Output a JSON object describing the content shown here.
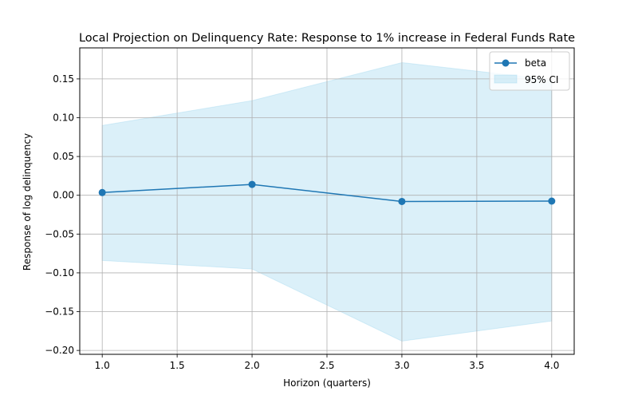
{
  "chart_data": {
    "type": "line",
    "title": "Local Projection on Delinquency Rate: Response to 1% increase in Federal Funds Rate",
    "xlabel": "Horizon (quarters)",
    "ylabel": "Response of log delinquency",
    "xlim": [
      0.85,
      4.15
    ],
    "ylim": [
      -0.205,
      0.19
    ],
    "xticks": [
      1.0,
      1.5,
      2.0,
      2.5,
      3.0,
      3.5,
      4.0
    ],
    "xtick_labels": [
      "1.0",
      "1.5",
      "2.0",
      "2.5",
      "3.0",
      "3.5",
      "4.0"
    ],
    "yticks": [
      -0.2,
      -0.15,
      -0.1,
      -0.05,
      0.0,
      0.05,
      0.1,
      0.15
    ],
    "ytick_labels": [
      "−0.20",
      "−0.15",
      "−0.10",
      "−0.05",
      "0.00",
      "0.05",
      "0.10",
      "0.15"
    ],
    "grid": true,
    "legend_position": "top-right",
    "x": [
      1,
      2,
      3,
      4
    ],
    "series": [
      {
        "name": "beta",
        "values": [
          0.0035,
          0.014,
          -0.008,
          -0.0075
        ],
        "color": "#1f77b4",
        "marker": "circle"
      }
    ],
    "band": {
      "name": "95% CI",
      "lower": [
        -0.084,
        -0.095,
        -0.188,
        -0.162
      ],
      "upper": [
        0.09,
        0.122,
        0.171,
        0.149
      ],
      "color": "#87ceeb"
    }
  }
}
